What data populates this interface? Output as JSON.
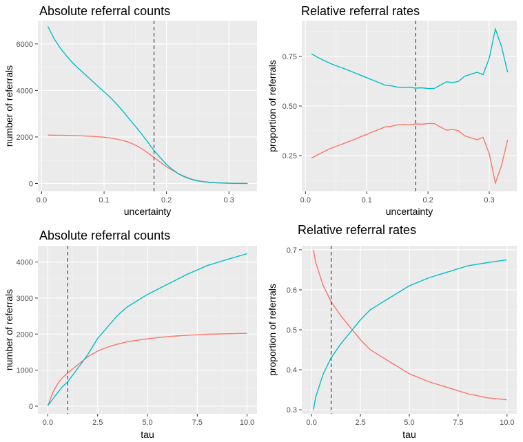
{
  "series_colors": [
    "#F8766D",
    "#00BFC4"
  ],
  "chart_data": [
    {
      "type": "line",
      "title": "Absolute referral counts",
      "xlabel": "uncertainty",
      "ylabel": "number of referrals",
      "xlim": [
        -0.006,
        0.345
      ],
      "ylim": [
        -340,
        7000
      ],
      "xticks": [
        0,
        0.1,
        0.2,
        0.3
      ],
      "xtick_labels": [
        "0.0",
        "0.1",
        "0.2",
        "0.3"
      ],
      "yticks": [
        0,
        2000,
        4000,
        6000
      ],
      "ytick_labels": [
        "0",
        "2000",
        "4000",
        "6000"
      ],
      "vline": 0.18,
      "grid": true,
      "series": [
        {
          "x": [
            0.01,
            0.02,
            0.03,
            0.04,
            0.05,
            0.06,
            0.07,
            0.08,
            0.09,
            0.1,
            0.11,
            0.12,
            0.13,
            0.14,
            0.15,
            0.16,
            0.17,
            0.18,
            0.19,
            0.2,
            0.21,
            0.22,
            0.23,
            0.24,
            0.25,
            0.26,
            0.27,
            0.28,
            0.29,
            0.3,
            0.31,
            0.32,
            0.33
          ],
          "y": [
            2080,
            2075,
            2070,
            2065,
            2060,
            2050,
            2040,
            2025,
            2010,
            1990,
            1960,
            1910,
            1850,
            1770,
            1650,
            1500,
            1320,
            1120,
            920,
            720,
            560,
            410,
            290,
            190,
            120,
            80,
            50,
            30,
            20,
            12,
            8,
            5,
            3
          ]
        },
        {
          "x": [
            0.01,
            0.02,
            0.03,
            0.04,
            0.05,
            0.06,
            0.07,
            0.08,
            0.09,
            0.1,
            0.11,
            0.12,
            0.13,
            0.14,
            0.15,
            0.16,
            0.17,
            0.18,
            0.19,
            0.2,
            0.21,
            0.22,
            0.23,
            0.24,
            0.25,
            0.26,
            0.27,
            0.28,
            0.29,
            0.3,
            0.31,
            0.32,
            0.33
          ],
          "y": [
            6750,
            6220,
            5820,
            5480,
            5180,
            4920,
            4680,
            4430,
            4180,
            3940,
            3700,
            3420,
            3120,
            2780,
            2470,
            2130,
            1780,
            1420,
            1110,
            820,
            590,
            400,
            270,
            175,
            110,
            70,
            45,
            28,
            18,
            11,
            7,
            4,
            2
          ]
        }
      ]
    },
    {
      "type": "line",
      "title": "Relative referral rates",
      "xlabel": "uncertainty",
      "ylabel": "proportion of referrals",
      "xlim": [
        -0.006,
        0.345
      ],
      "ylim": [
        0.07,
        0.93
      ],
      "xticks": [
        0,
        0.1,
        0.2,
        0.3
      ],
      "xtick_labels": [
        "0.0",
        "0.1",
        "0.2",
        "0.3"
      ],
      "yticks": [
        0.25,
        0.5,
        0.75
      ],
      "ytick_labels": [
        "0.25",
        "0.50",
        "0.75"
      ],
      "vline": 0.18,
      "grid": true,
      "series": [
        {
          "x": [
            0.01,
            0.02,
            0.03,
            0.04,
            0.05,
            0.06,
            0.07,
            0.08,
            0.09,
            0.1,
            0.11,
            0.12,
            0.13,
            0.14,
            0.15,
            0.16,
            0.17,
            0.18,
            0.19,
            0.2,
            0.21,
            0.22,
            0.23,
            0.24,
            0.25,
            0.26,
            0.27,
            0.28,
            0.29,
            0.3,
            0.31,
            0.32,
            0.33
          ],
          "y": [
            0.238,
            0.255,
            0.27,
            0.285,
            0.297,
            0.308,
            0.32,
            0.332,
            0.345,
            0.357,
            0.37,
            0.382,
            0.395,
            0.398,
            0.405,
            0.407,
            0.405,
            0.41,
            0.408,
            0.412,
            0.412,
            0.395,
            0.378,
            0.382,
            0.375,
            0.35,
            0.34,
            0.33,
            0.342,
            0.26,
            0.112,
            0.2,
            0.33
          ]
        },
        {
          "x": [
            0.01,
            0.02,
            0.03,
            0.04,
            0.05,
            0.06,
            0.07,
            0.08,
            0.09,
            0.1,
            0.11,
            0.12,
            0.13,
            0.14,
            0.15,
            0.16,
            0.17,
            0.18,
            0.19,
            0.2,
            0.21,
            0.22,
            0.23,
            0.24,
            0.25,
            0.26,
            0.27,
            0.28,
            0.29,
            0.3,
            0.31,
            0.32,
            0.33
          ],
          "y": [
            0.762,
            0.745,
            0.73,
            0.715,
            0.703,
            0.692,
            0.68,
            0.668,
            0.655,
            0.643,
            0.63,
            0.618,
            0.605,
            0.602,
            0.595,
            0.593,
            0.595,
            0.59,
            0.592,
            0.588,
            0.588,
            0.605,
            0.622,
            0.618,
            0.625,
            0.65,
            0.66,
            0.67,
            0.658,
            0.74,
            0.888,
            0.8,
            0.67
          ]
        }
      ]
    },
    {
      "type": "line",
      "title": "Absolute referral counts",
      "xlabel": "tau",
      "ylabel": "number of referrals",
      "xlim": [
        -0.5,
        10.5
      ],
      "ylim": [
        -210,
        4450
      ],
      "xticks": [
        0,
        2.5,
        5,
        7.5,
        10
      ],
      "xtick_labels": [
        "0.0",
        "2.5",
        "5.0",
        "7.5",
        "10.0"
      ],
      "yticks": [
        0,
        1000,
        2000,
        3000,
        4000
      ],
      "ytick_labels": [
        "0",
        "1000",
        "2000",
        "3000",
        "4000"
      ],
      "vline": 1,
      "grid": true,
      "series": [
        {
          "x": [
            0,
            0.25,
            0.5,
            0.75,
            1,
            1.5,
            2,
            2.5,
            3,
            3.5,
            4,
            5,
            6,
            7,
            8,
            9,
            10
          ],
          "y": [
            20,
            380,
            630,
            800,
            920,
            1150,
            1370,
            1530,
            1640,
            1720,
            1790,
            1870,
            1930,
            1970,
            1995,
            2010,
            2020
          ]
        },
        {
          "x": [
            0,
            0.25,
            0.5,
            0.75,
            1,
            1.5,
            2,
            2.5,
            3,
            3.5,
            4,
            5,
            6,
            7,
            8,
            9,
            10
          ],
          "y": [
            20,
            200,
            380,
            550,
            680,
            1050,
            1430,
            1880,
            2200,
            2520,
            2760,
            3100,
            3380,
            3660,
            3900,
            4070,
            4230
          ]
        }
      ]
    },
    {
      "type": "line",
      "title": "Relative referral rates",
      "xlabel": "tau",
      "ylabel": "proportion of referrals",
      "xlim": [
        -0.5,
        10.5
      ],
      "ylim": [
        0.29,
        0.71
      ],
      "xticks": [
        0,
        2.5,
        5,
        7.5,
        10
      ],
      "xtick_labels": [
        "0.0",
        "2.5",
        "5.0",
        "7.5",
        "10.0"
      ],
      "yticks": [
        0.3,
        0.4,
        0.5,
        0.6,
        0.7
      ],
      "ytick_labels": [
        "0.3",
        "0.4",
        "0.5",
        "0.6",
        "0.7"
      ],
      "vline": 1,
      "grid": true,
      "series": [
        {
          "x": [
            0.1,
            0.2,
            0.4,
            0.6,
            0.8,
            1,
            1.5,
            2,
            2.5,
            3,
            3.5,
            4,
            5,
            6,
            7,
            8,
            9,
            10
          ],
          "y": [
            0.7,
            0.67,
            0.64,
            0.61,
            0.59,
            0.57,
            0.535,
            0.505,
            0.475,
            0.45,
            0.435,
            0.42,
            0.39,
            0.37,
            0.355,
            0.34,
            0.33,
            0.325
          ]
        },
        {
          "x": [
            0.1,
            0.2,
            0.4,
            0.6,
            0.8,
            1,
            1.5,
            2,
            2.5,
            3,
            3.5,
            4,
            5,
            6,
            7,
            8,
            9,
            10
          ],
          "y": [
            0.3,
            0.33,
            0.36,
            0.39,
            0.41,
            0.43,
            0.465,
            0.495,
            0.525,
            0.55,
            0.565,
            0.58,
            0.61,
            0.63,
            0.645,
            0.66,
            0.668,
            0.675
          ]
        }
      ]
    }
  ]
}
